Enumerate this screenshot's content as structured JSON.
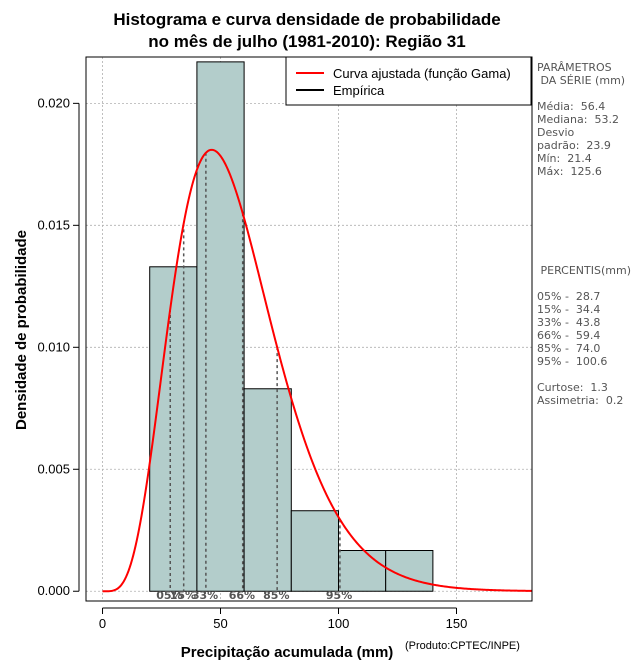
{
  "chart_data": {
    "type": "bar",
    "title": [
      "Histograma e curva densidade de probabilidade",
      "no mês de julho (1981-2010): Região 31"
    ],
    "xlabel": "Precipitação acumulada (mm)",
    "ylabel": "Densidade de probabilidade",
    "xlim": [
      -7,
      182
    ],
    "ylim": [
      -0.0004,
      0.0219
    ],
    "x_ticks": [
      0,
      50,
      100,
      150
    ],
    "x_tick_labels": [
      "0",
      "50",
      "100",
      "150"
    ],
    "y_ticks": [
      0.0,
      0.005,
      0.01,
      0.015,
      0.02
    ],
    "y_tick_labels": [
      "0.000",
      "0.005",
      "0.010",
      "0.015",
      "0.020"
    ],
    "grid": true,
    "bins": [
      {
        "from": 20,
        "to": 40,
        "density": 0.0133
      },
      {
        "from": 40,
        "to": 60,
        "density": 0.0217
      },
      {
        "from": 60,
        "to": 80,
        "density": 0.0083
      },
      {
        "from": 80,
        "to": 100,
        "density": 0.0033
      },
      {
        "from": 100,
        "to": 120,
        "density": 0.00167
      },
      {
        "from": 120,
        "to": 140,
        "density": 0.00167
      }
    ],
    "gamma_fit": {
      "mean": 56.4,
      "sd": 23.9
    },
    "percentile_lines": [
      {
        "label": "05%",
        "value": 28.7
      },
      {
        "label": "15%",
        "value": 34.4
      },
      {
        "label": "33%",
        "value": 43.8
      },
      {
        "label": "66%",
        "value": 59.4
      },
      {
        "label": "85%",
        "value": 74.0
      },
      {
        "label": "95%",
        "value": 100.6
      }
    ],
    "legend": {
      "placement": "top-right",
      "entries": [
        {
          "label": "Curva ajustada (função Gama)",
          "color": "#ff0000"
        },
        {
          "label": "Empírica",
          "color": "#000000"
        }
      ]
    },
    "colors": {
      "bar_fill": "#b3cdcb",
      "curve": "#ff0000",
      "grid": "#b0b0b0",
      "percentile": "#555555"
    }
  },
  "params": {
    "title_l1": "PARÂMETROS",
    "title_l2": " DA SÉRIE (mm)",
    "media": "Média:  56.4",
    "mediana": "Mediana:  53.2",
    "desvio_l1": "Desvio",
    "desvio_l2": "padrão:  23.9",
    "min": "Mín:  21.4",
    "max": "Máx:  125.6"
  },
  "percentis": {
    "title": " PERCENTIS(mm)",
    "p05": "05% -  28.7",
    "p15": "15% -  34.4",
    "p33": "33% -  43.8",
    "p66": "66% -  59.4",
    "p85": "85% -  74.0",
    "p95": "95% -  100.6",
    "curtose": "Curtose:  1.3",
    "assimetria": "Assimetria:  0.2"
  },
  "credit": "(Produto:CPTEC/INPE)"
}
